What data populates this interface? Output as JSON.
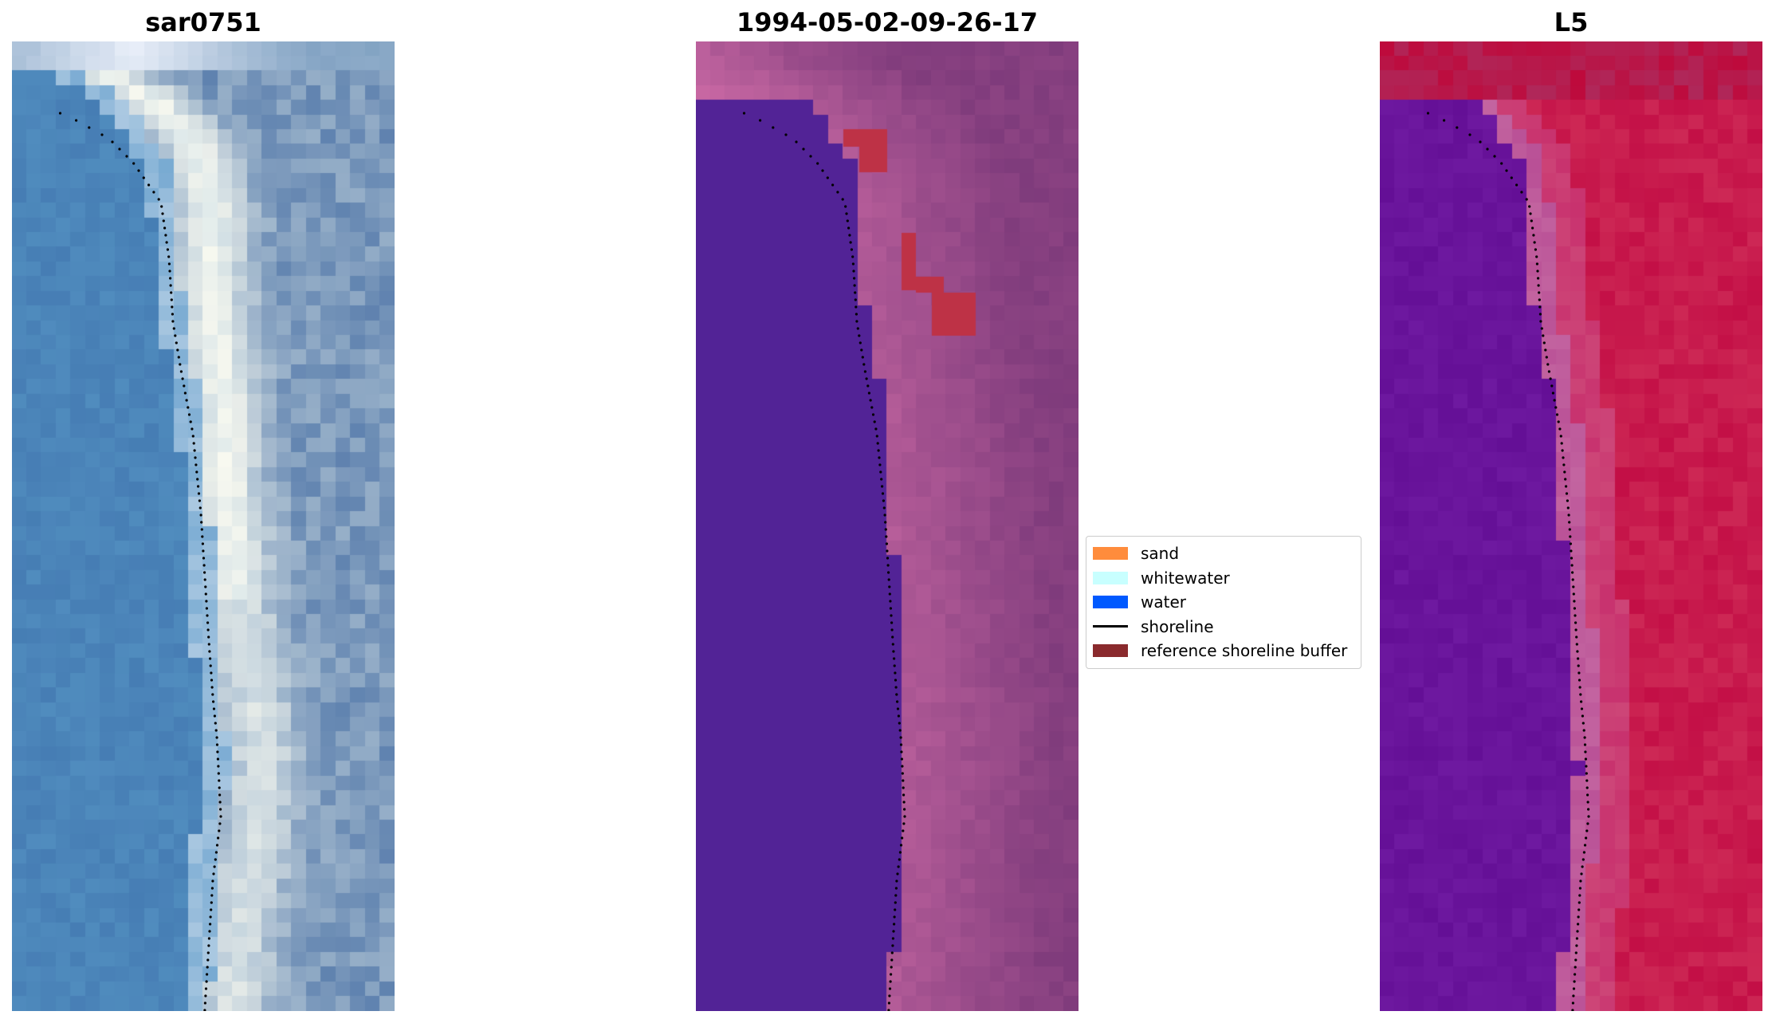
{
  "panels": [
    {
      "title": "sar0751",
      "style": "rgb"
    },
    {
      "title": "1994-05-02-09-26-17",
      "style": "classified"
    },
    {
      "title": "L5",
      "style": "index"
    }
  ],
  "legend": {
    "items": [
      {
        "label": "sand",
        "color": "#ff8c3c",
        "type": "patch"
      },
      {
        "label": "whitewater",
        "color": "#c8ffff",
        "type": "patch"
      },
      {
        "label": "water",
        "color": "#0059ff",
        "type": "patch"
      },
      {
        "label": "shoreline",
        "color": "#000000",
        "type": "line"
      },
      {
        "label": "reference shoreline buffer",
        "color": "#8a2a2d",
        "type": "patch"
      }
    ]
  }
}
